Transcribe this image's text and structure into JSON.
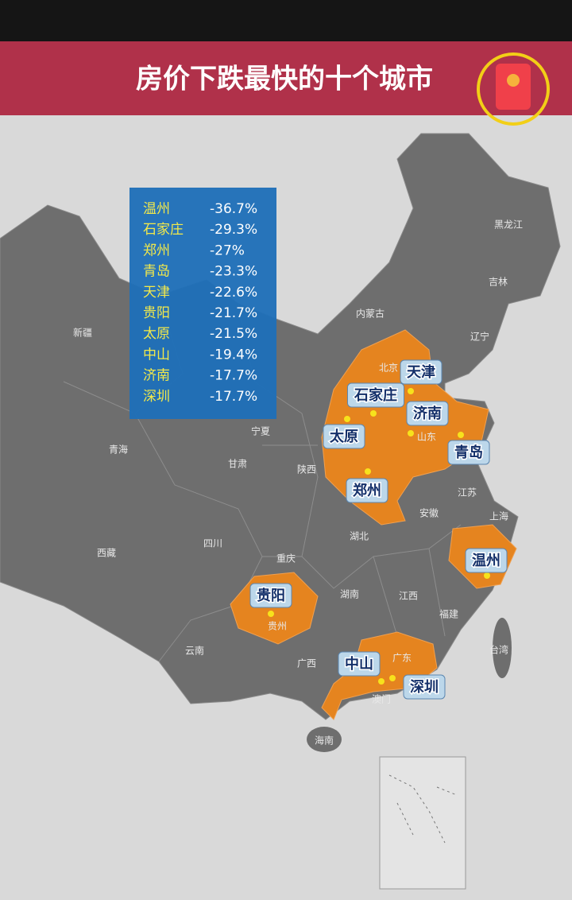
{
  "header": {
    "title": "房价下跌最快的十个城市"
  },
  "table": {
    "rows": [
      [
        "温州",
        "-36.7%"
      ],
      [
        "石家庄",
        "-29.3%"
      ],
      [
        "郑州",
        "-27%"
      ],
      [
        "青岛",
        "-23.3%"
      ],
      [
        "天津",
        "-22.6%"
      ],
      [
        "贵阳",
        "-21.7%"
      ],
      [
        "太原",
        "-21.5%"
      ],
      [
        "中山",
        "-19.4%"
      ],
      [
        "济南",
        "-17.7%"
      ],
      [
        "深圳",
        "-17.7%"
      ]
    ]
  },
  "map": {
    "cities": [
      "天津",
      "石家庄",
      "济南",
      "太原",
      "青岛",
      "郑州",
      "温州",
      "贵阳",
      "中山",
      "深圳"
    ],
    "provinces": [
      "黑龙江",
      "吉林",
      "辽宁",
      "内蒙古",
      "北京",
      "新疆",
      "青海",
      "甘肃",
      "宁夏",
      "陕西",
      "山东",
      "江苏",
      "上海",
      "安徽",
      "湖北",
      "西藏",
      "四川",
      "重庆",
      "湖南",
      "江西",
      "福建",
      "台湾",
      "贵州",
      "云南",
      "广西",
      "广东",
      "澳门",
      "海南"
    ]
  }
}
